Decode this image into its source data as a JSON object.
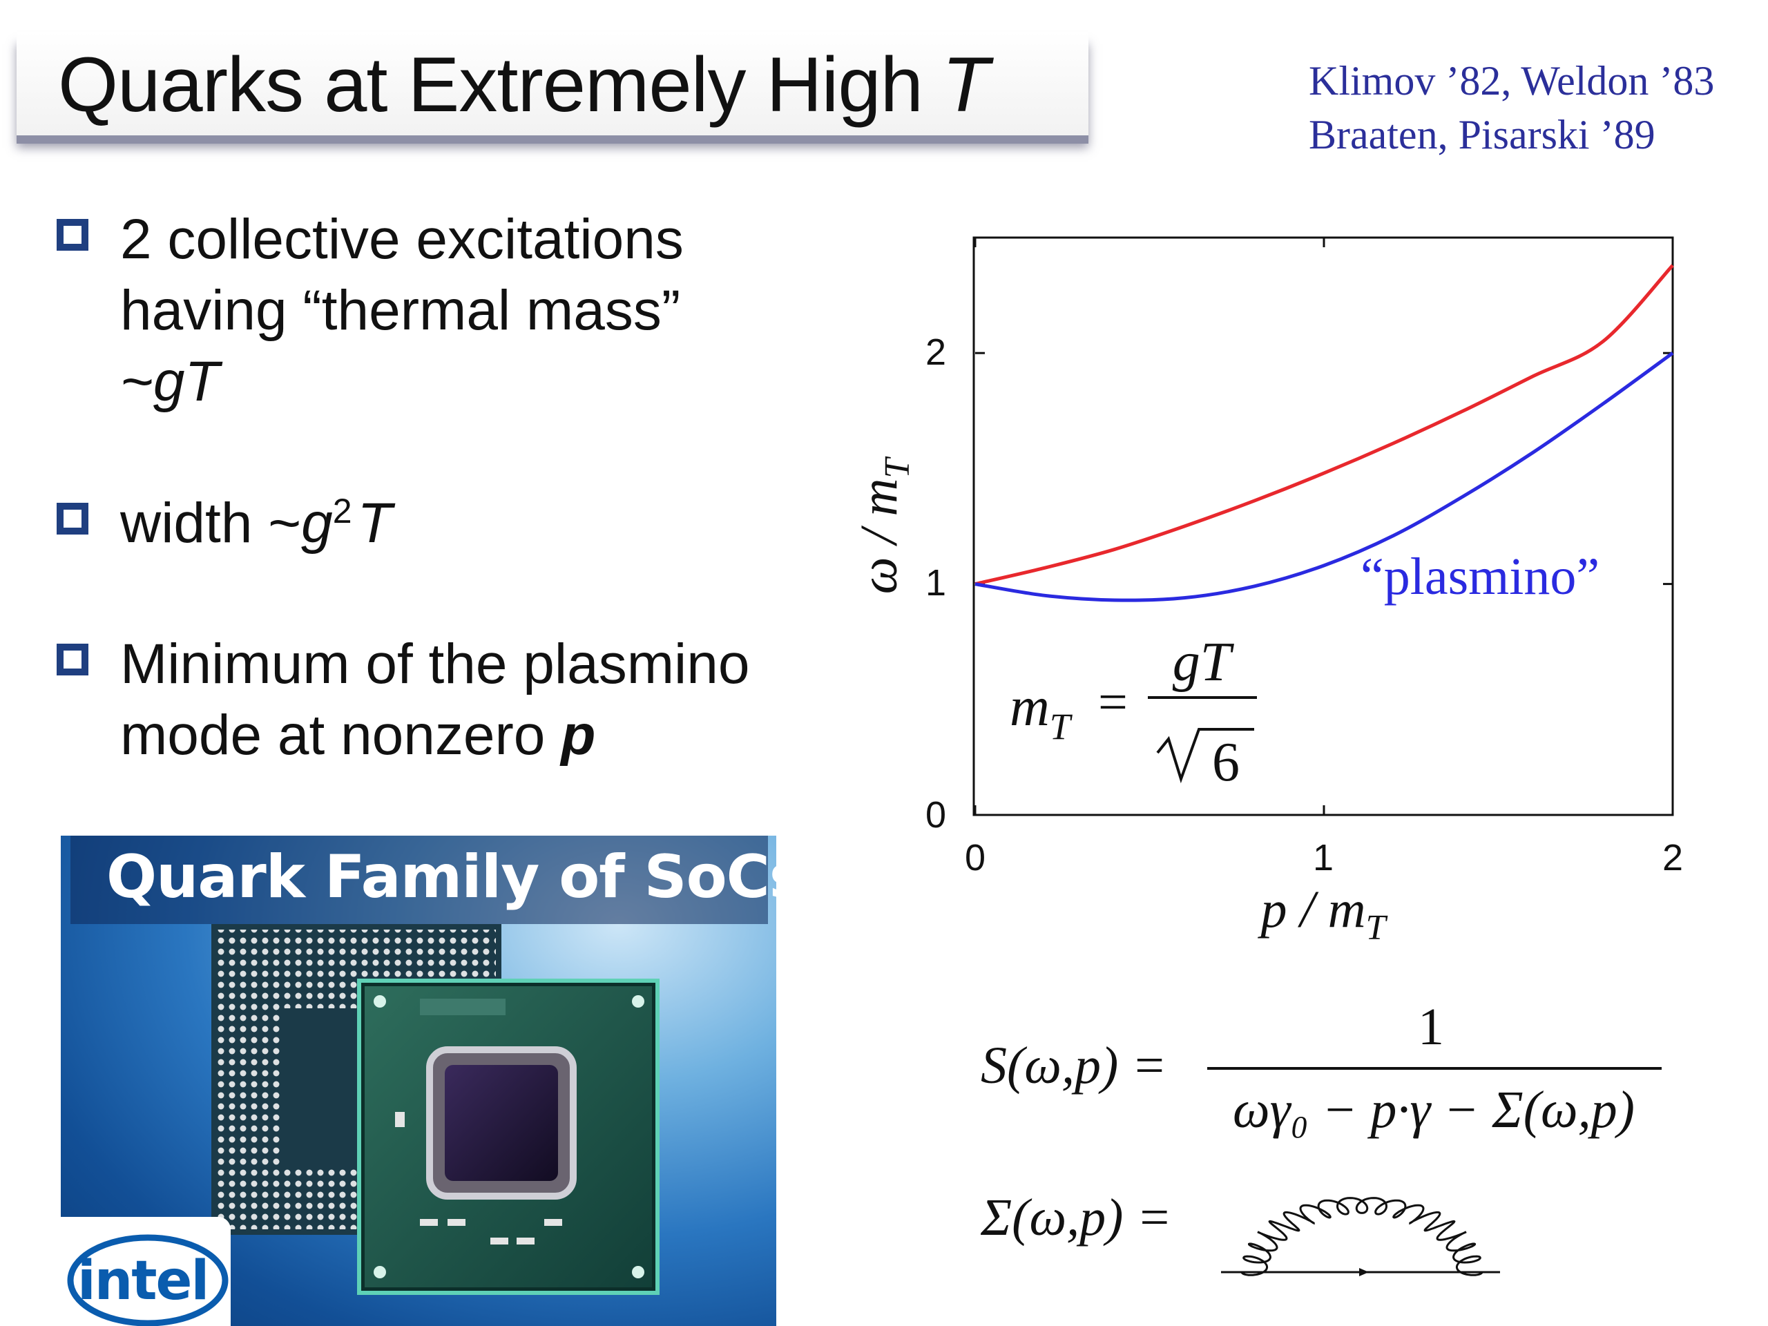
{
  "title": {
    "main": "Quarks at Extremely High",
    "variable": "T"
  },
  "references": [
    "Klimov ’82, Weldon ’83",
    "Braaten, Pisarski ’89"
  ],
  "bullets": [
    {
      "lines": [
        "2 collective excitations",
        "having “thermal mass”",
        "~gT"
      ]
    },
    {
      "prefix": "width ~",
      "g": "g",
      "exp": "2",
      "T": "T"
    },
    {
      "lines": [
        "Minimum of the plasmino",
        "mode at nonzero "
      ],
      "bold_var": "p"
    }
  ],
  "picture": {
    "caption": "Quark Family of SoCs",
    "logo": "intel"
  },
  "colors": {
    "bullet_box": "#1f3f80",
    "refs": "#2b2f9a",
    "upper_branch": "#e8282d",
    "plasmino_branch": "#2a2ae0"
  },
  "chart_data": {
    "type": "line",
    "xlabel": "p / m_T",
    "ylabel": "ω / m_T",
    "xlim": [
      0,
      2
    ],
    "ylim": [
      0,
      2.5
    ],
    "xticks": [
      "0",
      "1",
      "2"
    ],
    "yticks": [
      "0",
      "1",
      "2"
    ],
    "grid": false,
    "annotation": "“plasmino”",
    "inset_formula": {
      "lhs": "m",
      "sub": "T",
      "num": "gT",
      "den": "6"
    },
    "series": [
      {
        "x": [
          0,
          0.2,
          0.4,
          0.6,
          0.8,
          1.0,
          1.2,
          1.4,
          1.6,
          1.8,
          2.0
        ],
        "y": [
          1.0,
          1.07,
          1.15,
          1.25,
          1.36,
          1.48,
          1.61,
          1.75,
          1.9,
          2.05,
          2.38
        ]
      },
      {
        "x": [
          0,
          0.2,
          0.4,
          0.6,
          0.8,
          1.0,
          1.2,
          1.4,
          1.6,
          1.8,
          2.0
        ],
        "y": [
          1.0,
          0.95,
          0.93,
          0.94,
          0.99,
          1.08,
          1.21,
          1.38,
          1.57,
          1.78,
          2.0
        ]
      }
    ]
  },
  "equations": {
    "propagator": {
      "lhs": "S(ω,p) =",
      "num": "1",
      "den": "ωγ₀ − p·γ − Σ(ω,p)"
    },
    "self_energy": {
      "lhs": "Σ(ω,p) ="
    }
  }
}
